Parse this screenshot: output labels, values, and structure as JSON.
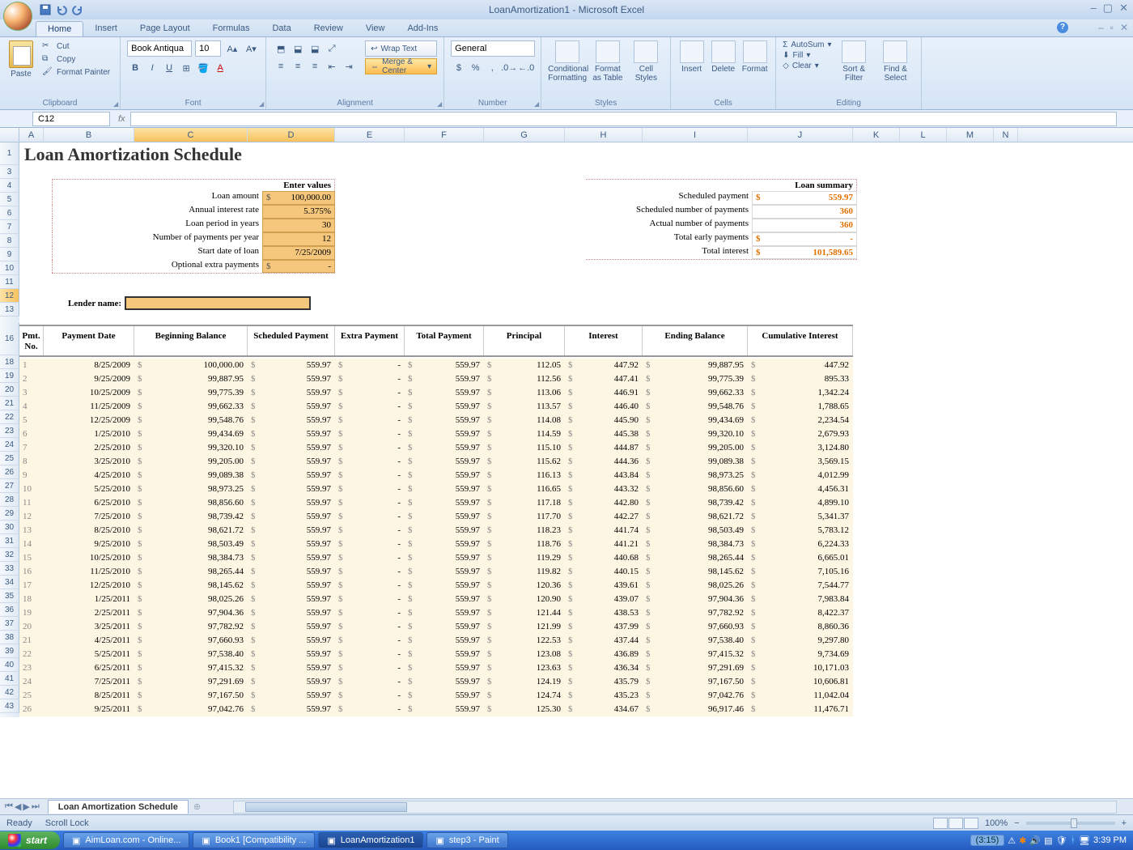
{
  "app": {
    "title": "LoanAmortization1 - Microsoft Excel"
  },
  "tabs": [
    "Home",
    "Insert",
    "Page Layout",
    "Formulas",
    "Data",
    "Review",
    "View",
    "Add-Ins"
  ],
  "active_tab": "Home",
  "ribbon": {
    "clipboard": {
      "label": "Clipboard",
      "paste": "Paste",
      "cut": "Cut",
      "copy": "Copy",
      "format_painter": "Format Painter"
    },
    "font": {
      "label": "Font",
      "name": "Book Antiqua",
      "size": "10"
    },
    "alignment": {
      "label": "Alignment",
      "wrap": "Wrap Text",
      "merge": "Merge & Center"
    },
    "number": {
      "label": "Number",
      "format": "General"
    },
    "styles": {
      "label": "Styles",
      "conditional": "Conditional Formatting",
      "fat": "Format as Table",
      "cell": "Cell Styles"
    },
    "cells": {
      "label": "Cells",
      "insert": "Insert",
      "delete": "Delete",
      "format": "Format"
    },
    "editing": {
      "label": "Editing",
      "autosum": "AutoSum",
      "fill": "Fill",
      "clear": "Clear",
      "sort": "Sort & Filter",
      "find": "Find & Select"
    }
  },
  "name_box": "C12",
  "columns": [
    "A",
    "B",
    "C",
    "D",
    "E",
    "F",
    "G",
    "H",
    "I",
    "J",
    "K",
    "L",
    "M",
    "N"
  ],
  "selected_cols": [
    "C",
    "D"
  ],
  "selected_row": 12,
  "doc_title": "Loan Amortization Schedule",
  "enter_values": {
    "header": "Enter values",
    "rows": [
      {
        "label": "Loan amount",
        "value": "100,000.00",
        "dollar": true
      },
      {
        "label": "Annual interest rate",
        "value": "5.375%"
      },
      {
        "label": "Loan period in years",
        "value": "30"
      },
      {
        "label": "Number of payments per year",
        "value": "12"
      },
      {
        "label": "Start date of loan",
        "value": "7/25/2009"
      },
      {
        "label": "Optional extra payments",
        "value": "-",
        "dollar": true
      }
    ]
  },
  "lender_label": "Lender name:",
  "loan_summary": {
    "header": "Loan summary",
    "rows": [
      {
        "label": "Scheduled payment",
        "value": "559.97",
        "dollar": true
      },
      {
        "label": "Scheduled number of payments",
        "value": "360"
      },
      {
        "label": "Actual number of payments",
        "value": "360"
      },
      {
        "label": "Total early payments",
        "value": "-",
        "dollar": true
      },
      {
        "label": "Total interest",
        "value": "101,589.65",
        "dollar": true
      }
    ]
  },
  "amort_headers": [
    "Pmt. No.",
    "Payment Date",
    "Beginning Balance",
    "Scheduled Payment",
    "Extra Payment",
    "Total Payment",
    "Principal",
    "Interest",
    "Ending Balance",
    "Cumulative Interest"
  ],
  "amort_rows": [
    {
      "n": "1",
      "date": "8/25/2009",
      "bb": "100,000.00",
      "sp": "559.97",
      "ep": "-",
      "tp": "559.97",
      "pr": "112.05",
      "in": "447.92",
      "eb": "99,887.95",
      "ci": "447.92"
    },
    {
      "n": "2",
      "date": "9/25/2009",
      "bb": "99,887.95",
      "sp": "559.97",
      "ep": "-",
      "tp": "559.97",
      "pr": "112.56",
      "in": "447.41",
      "eb": "99,775.39",
      "ci": "895.33"
    },
    {
      "n": "3",
      "date": "10/25/2009",
      "bb": "99,775.39",
      "sp": "559.97",
      "ep": "-",
      "tp": "559.97",
      "pr": "113.06",
      "in": "446.91",
      "eb": "99,662.33",
      "ci": "1,342.24"
    },
    {
      "n": "4",
      "date": "11/25/2009",
      "bb": "99,662.33",
      "sp": "559.97",
      "ep": "-",
      "tp": "559.97",
      "pr": "113.57",
      "in": "446.40",
      "eb": "99,548.76",
      "ci": "1,788.65"
    },
    {
      "n": "5",
      "date": "12/25/2009",
      "bb": "99,548.76",
      "sp": "559.97",
      "ep": "-",
      "tp": "559.97",
      "pr": "114.08",
      "in": "445.90",
      "eb": "99,434.69",
      "ci": "2,234.54"
    },
    {
      "n": "6",
      "date": "1/25/2010",
      "bb": "99,434.69",
      "sp": "559.97",
      "ep": "-",
      "tp": "559.97",
      "pr": "114.59",
      "in": "445.38",
      "eb": "99,320.10",
      "ci": "2,679.93"
    },
    {
      "n": "7",
      "date": "2/25/2010",
      "bb": "99,320.10",
      "sp": "559.97",
      "ep": "-",
      "tp": "559.97",
      "pr": "115.10",
      "in": "444.87",
      "eb": "99,205.00",
      "ci": "3,124.80"
    },
    {
      "n": "8",
      "date": "3/25/2010",
      "bb": "99,205.00",
      "sp": "559.97",
      "ep": "-",
      "tp": "559.97",
      "pr": "115.62",
      "in": "444.36",
      "eb": "99,089.38",
      "ci": "3,569.15"
    },
    {
      "n": "9",
      "date": "4/25/2010",
      "bb": "99,089.38",
      "sp": "559.97",
      "ep": "-",
      "tp": "559.97",
      "pr": "116.13",
      "in": "443.84",
      "eb": "98,973.25",
      "ci": "4,012.99"
    },
    {
      "n": "10",
      "date": "5/25/2010",
      "bb": "98,973.25",
      "sp": "559.97",
      "ep": "-",
      "tp": "559.97",
      "pr": "116.65",
      "in": "443.32",
      "eb": "98,856.60",
      "ci": "4,456.31"
    },
    {
      "n": "11",
      "date": "6/25/2010",
      "bb": "98,856.60",
      "sp": "559.97",
      "ep": "-",
      "tp": "559.97",
      "pr": "117.18",
      "in": "442.80",
      "eb": "98,739.42",
      "ci": "4,899.10"
    },
    {
      "n": "12",
      "date": "7/25/2010",
      "bb": "98,739.42",
      "sp": "559.97",
      "ep": "-",
      "tp": "559.97",
      "pr": "117.70",
      "in": "442.27",
      "eb": "98,621.72",
      "ci": "5,341.37"
    },
    {
      "n": "13",
      "date": "8/25/2010",
      "bb": "98,621.72",
      "sp": "559.97",
      "ep": "-",
      "tp": "559.97",
      "pr": "118.23",
      "in": "441.74",
      "eb": "98,503.49",
      "ci": "5,783.12"
    },
    {
      "n": "14",
      "date": "9/25/2010",
      "bb": "98,503.49",
      "sp": "559.97",
      "ep": "-",
      "tp": "559.97",
      "pr": "118.76",
      "in": "441.21",
      "eb": "98,384.73",
      "ci": "6,224.33"
    },
    {
      "n": "15",
      "date": "10/25/2010",
      "bb": "98,384.73",
      "sp": "559.97",
      "ep": "-",
      "tp": "559.97",
      "pr": "119.29",
      "in": "440.68",
      "eb": "98,265.44",
      "ci": "6,665.01"
    },
    {
      "n": "16",
      "date": "11/25/2010",
      "bb": "98,265.44",
      "sp": "559.97",
      "ep": "-",
      "tp": "559.97",
      "pr": "119.82",
      "in": "440.15",
      "eb": "98,145.62",
      "ci": "7,105.16"
    },
    {
      "n": "17",
      "date": "12/25/2010",
      "bb": "98,145.62",
      "sp": "559.97",
      "ep": "-",
      "tp": "559.97",
      "pr": "120.36",
      "in": "439.61",
      "eb": "98,025.26",
      "ci": "7,544.77"
    },
    {
      "n": "18",
      "date": "1/25/2011",
      "bb": "98,025.26",
      "sp": "559.97",
      "ep": "-",
      "tp": "559.97",
      "pr": "120.90",
      "in": "439.07",
      "eb": "97,904.36",
      "ci": "7,983.84"
    },
    {
      "n": "19",
      "date": "2/25/2011",
      "bb": "97,904.36",
      "sp": "559.97",
      "ep": "-",
      "tp": "559.97",
      "pr": "121.44",
      "in": "438.53",
      "eb": "97,782.92",
      "ci": "8,422.37"
    },
    {
      "n": "20",
      "date": "3/25/2011",
      "bb": "97,782.92",
      "sp": "559.97",
      "ep": "-",
      "tp": "559.97",
      "pr": "121.99",
      "in": "437.99",
      "eb": "97,660.93",
      "ci": "8,860.36"
    },
    {
      "n": "21",
      "date": "4/25/2011",
      "bb": "97,660.93",
      "sp": "559.97",
      "ep": "-",
      "tp": "559.97",
      "pr": "122.53",
      "in": "437.44",
      "eb": "97,538.40",
      "ci": "9,297.80"
    },
    {
      "n": "22",
      "date": "5/25/2011",
      "bb": "97,538.40",
      "sp": "559.97",
      "ep": "-",
      "tp": "559.97",
      "pr": "123.08",
      "in": "436.89",
      "eb": "97,415.32",
      "ci": "9,734.69"
    },
    {
      "n": "23",
      "date": "6/25/2011",
      "bb": "97,415.32",
      "sp": "559.97",
      "ep": "-",
      "tp": "559.97",
      "pr": "123.63",
      "in": "436.34",
      "eb": "97,291.69",
      "ci": "10,171.03"
    },
    {
      "n": "24",
      "date": "7/25/2011",
      "bb": "97,291.69",
      "sp": "559.97",
      "ep": "-",
      "tp": "559.97",
      "pr": "124.19",
      "in": "435.79",
      "eb": "97,167.50",
      "ci": "10,606.81"
    },
    {
      "n": "25",
      "date": "8/25/2011",
      "bb": "97,167.50",
      "sp": "559.97",
      "ep": "-",
      "tp": "559.97",
      "pr": "124.74",
      "in": "435.23",
      "eb": "97,042.76",
      "ci": "11,042.04"
    },
    {
      "n": "26",
      "date": "9/25/2011",
      "bb": "97,042.76",
      "sp": "559.97",
      "ep": "-",
      "tp": "559.97",
      "pr": "125.30",
      "in": "434.67",
      "eb": "96,917.46",
      "ci": "11,476.71"
    }
  ],
  "row_numbers_pre": [
    1,
    3,
    4,
    5,
    6,
    7,
    8,
    9,
    10,
    11,
    12,
    13
  ],
  "amort_start_row": 18,
  "sheet_tab": "Loan Amortization Schedule",
  "status": {
    "ready": "Ready",
    "scroll_lock": "Scroll Lock",
    "zoom": "100%",
    "timer": "(3:15)"
  },
  "taskbar": {
    "start": "start",
    "buttons": [
      {
        "label": "AimLoan.com - Online...",
        "active": false
      },
      {
        "label": "Book1 [Compatibility ...",
        "active": false
      },
      {
        "label": "LoanAmortization1",
        "active": true
      },
      {
        "label": "step3 - Paint",
        "active": false
      }
    ],
    "clock": "3:39 PM"
  },
  "colors": {
    "ribbon_bg_top": "#e8f1fb",
    "ribbon_bg_bot": "#d5e4f5",
    "accent": "#3b5a82",
    "input_fill": "#f4c77c",
    "summary_val": "#e07000",
    "row_stripe": "#fdf6e3",
    "sel_header": "#f7c15d"
  }
}
